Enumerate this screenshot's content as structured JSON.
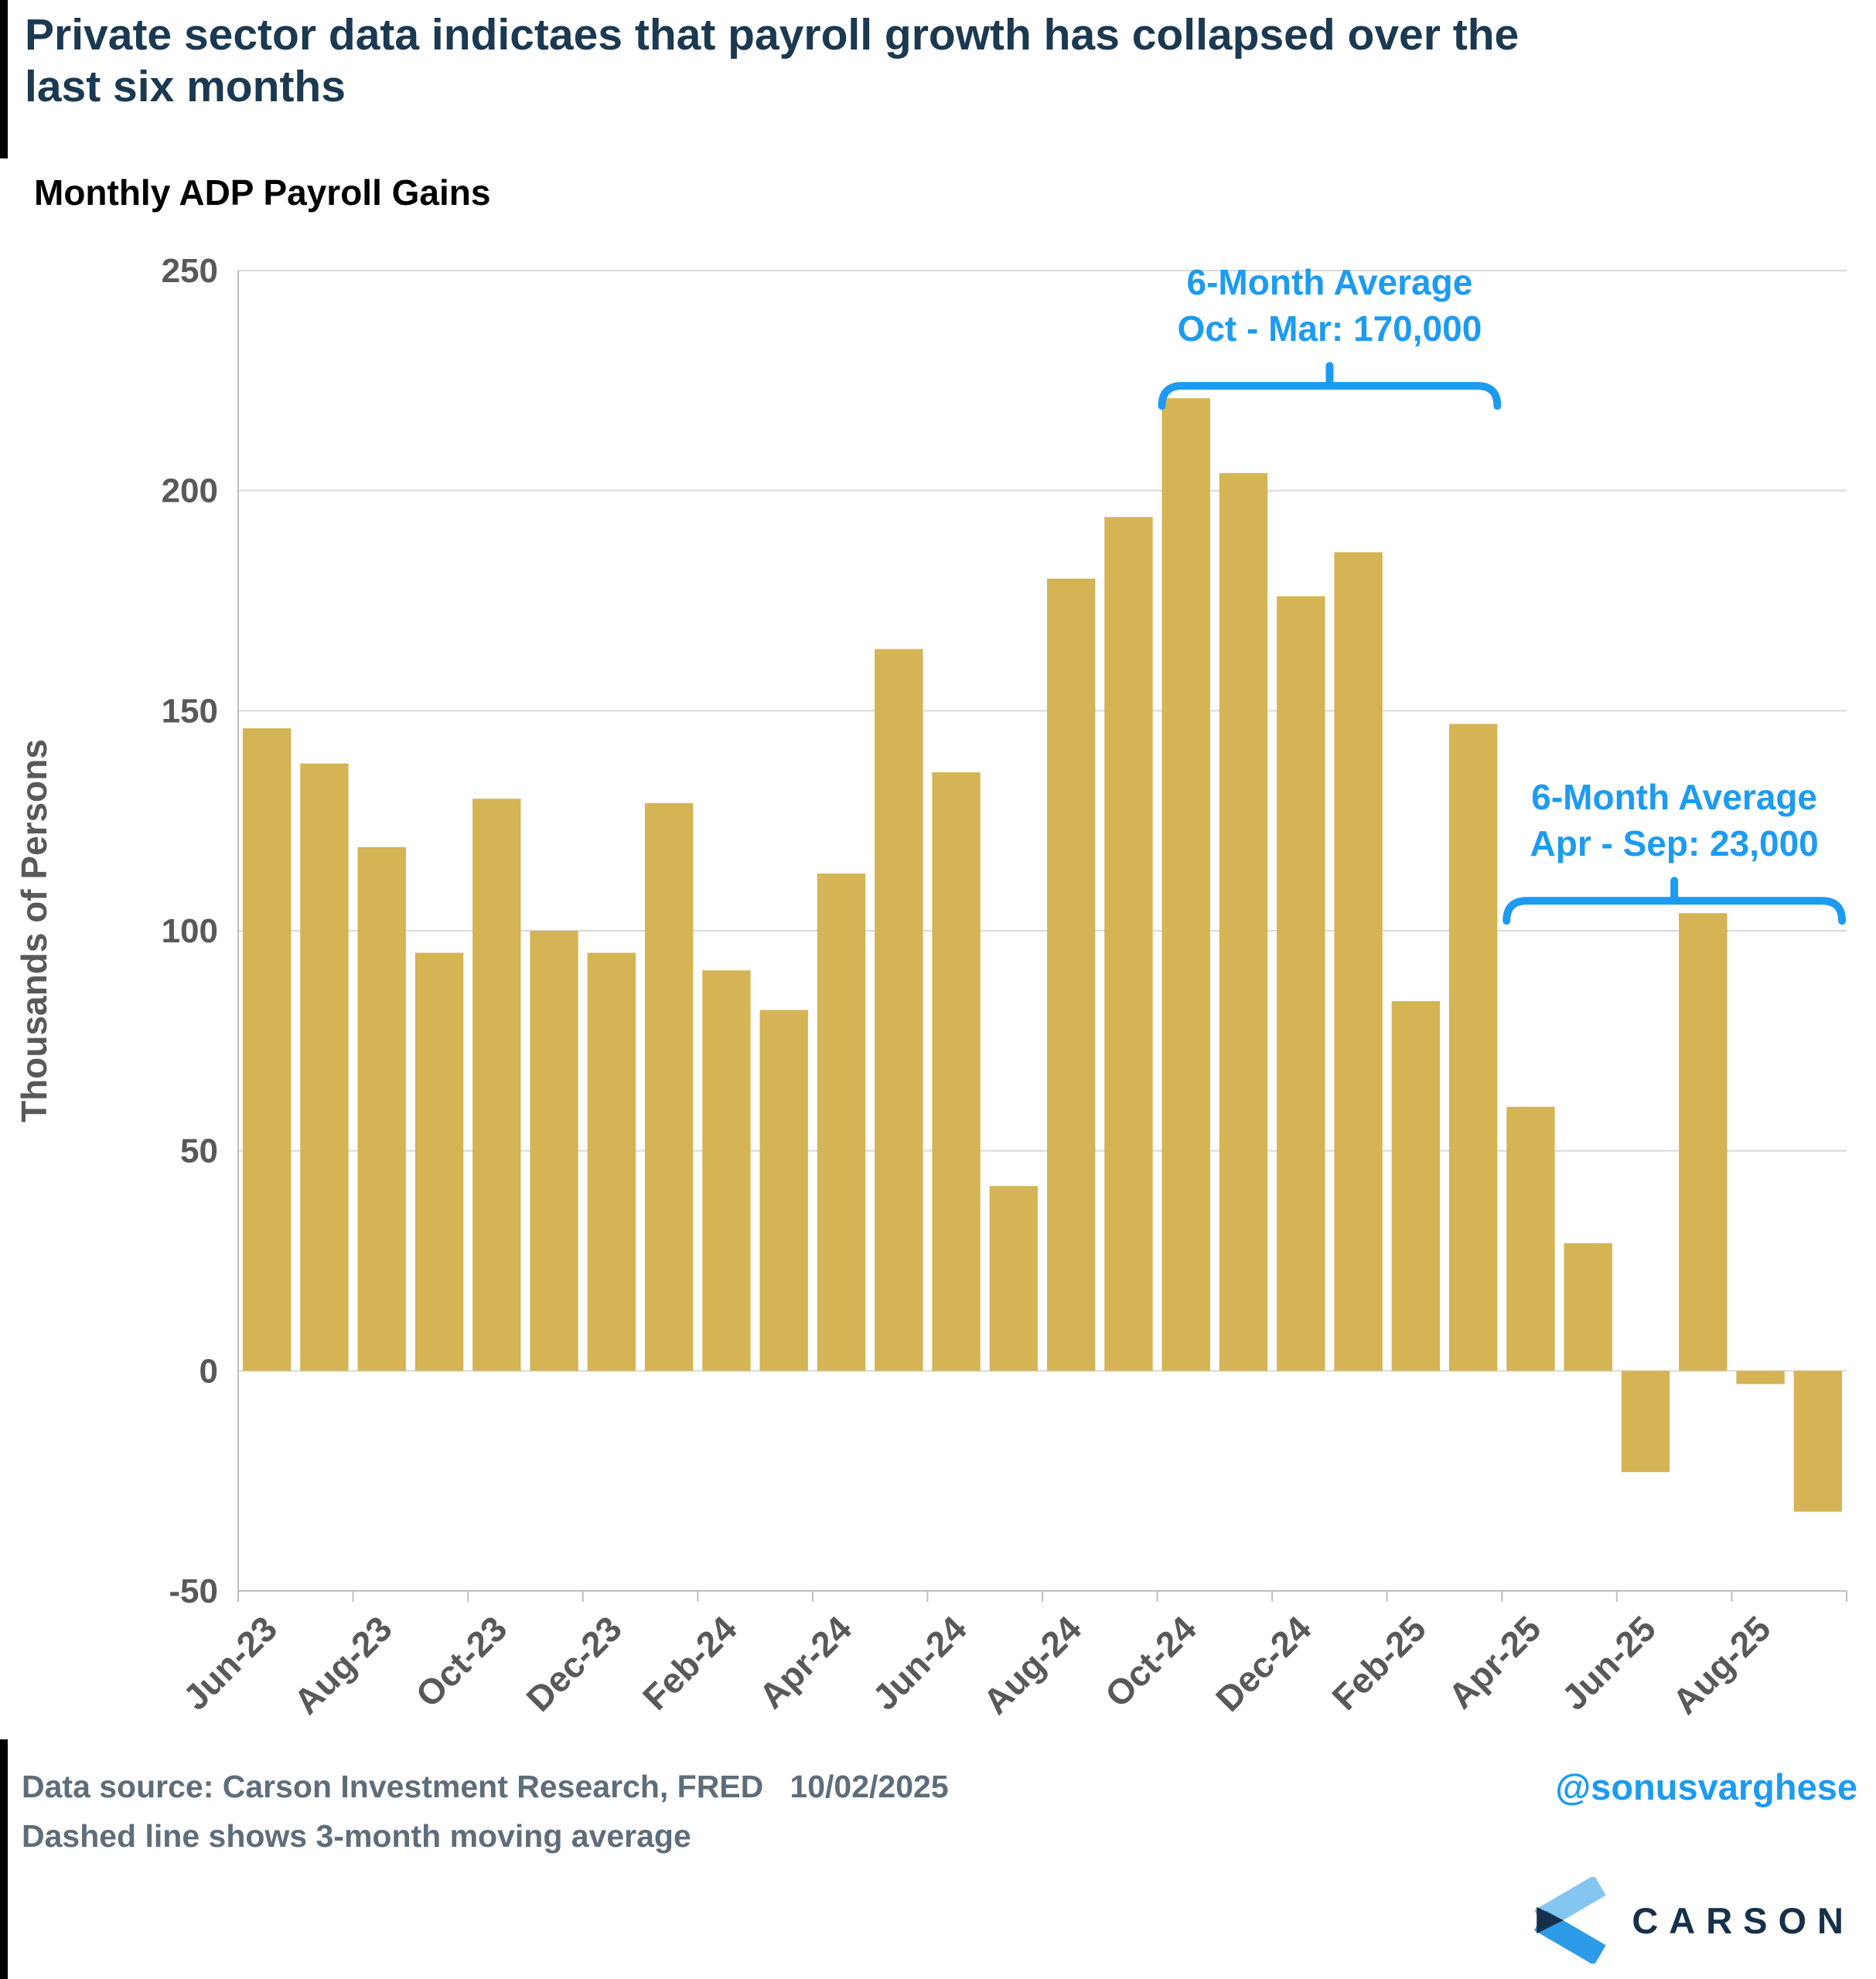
{
  "header": {
    "title": "Private sector data indictaes that payroll growth has collapsed over the last six months",
    "subtitle": "Monthly ADP Payroll Gains"
  },
  "footer": {
    "source_line": "Data source: Carson Investment Research, FRED   10/02/2025",
    "note_line": "Dashed line shows 3-month moving average",
    "handle": "@sonusvarghese",
    "brand": "CARSON"
  },
  "colors": {
    "bar": "#D5B455",
    "annotation_blue": "#1D9BF0",
    "title_navy": "#1B3951",
    "axis_gray": "#595959",
    "gridline": "#D9D9D9",
    "axis_line": "#BFBFBF",
    "footer_gray": "#5E6D7A",
    "logo_navy": "#16304A",
    "logo_light_blue": "#85C6F0",
    "logo_mid_blue": "#2E9BE8"
  },
  "chart_data": {
    "type": "bar",
    "title": "Monthly ADP Payroll Gains",
    "xlabel": "",
    "ylabel": "Thousands of Persons",
    "ylim": [
      -50,
      250
    ],
    "y_ticks": [
      250,
      200,
      150,
      100,
      50,
      0,
      -50
    ],
    "grid": "horizontal",
    "legend": "none",
    "categories": [
      "Jun-23",
      "Jul-23",
      "Aug-23",
      "Sep-23",
      "Oct-23",
      "Nov-23",
      "Dec-23",
      "Jan-24",
      "Feb-24",
      "Mar-24",
      "Apr-24",
      "May-24",
      "Jun-24",
      "Jul-24",
      "Aug-24",
      "Sep-24",
      "Oct-24",
      "Nov-24",
      "Dec-24",
      "Jan-25",
      "Feb-25",
      "Mar-25",
      "Apr-25",
      "May-25",
      "Jun-25",
      "Jul-25",
      "Aug-25",
      "Sep-25"
    ],
    "values": [
      146,
      138,
      119,
      95,
      130,
      100,
      95,
      129,
      91,
      82,
      113,
      164,
      136,
      42,
      180,
      194,
      221,
      204,
      176,
      186,
      84,
      147,
      60,
      29,
      -23,
      104,
      -3,
      -32
    ],
    "x_tick_labels": [
      "Jun-23",
      "Aug-23",
      "Oct-23",
      "Dec-23",
      "Feb-24",
      "Apr-24",
      "Jun-24",
      "Aug-24",
      "Oct-24",
      "Dec-24",
      "Feb-25",
      "Apr-25",
      "Jun-25",
      "Aug-25"
    ],
    "annotations": [
      {
        "line1": "6-Month Average",
        "line2": "Oct - Mar: 170,000",
        "from": "Oct-24",
        "to": "Mar-25",
        "from_index": 16,
        "to_index": 21,
        "average_value": 170000
      },
      {
        "line1": "6-Month Average",
        "line2": "Apr - Sep: 23,000",
        "from": "Apr-25",
        "to": "Sep-25",
        "from_index": 22,
        "to_index": 27,
        "average_value": 23000
      }
    ]
  }
}
